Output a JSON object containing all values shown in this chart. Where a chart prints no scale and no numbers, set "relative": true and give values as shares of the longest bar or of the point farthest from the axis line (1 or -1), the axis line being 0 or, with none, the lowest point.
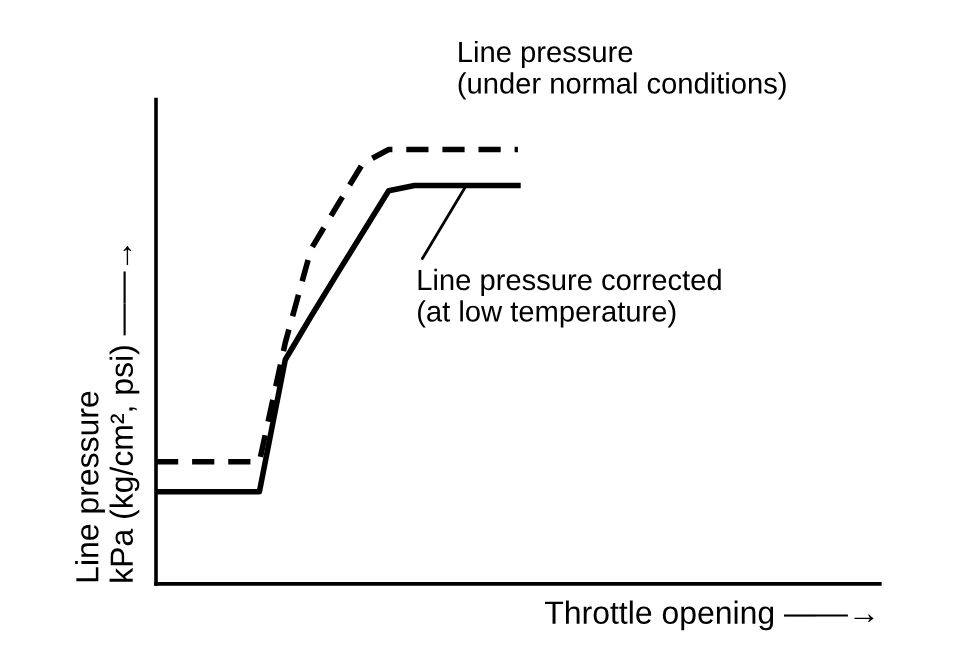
{
  "chart_data": {
    "type": "line",
    "relative": true,
    "xlabel": "Throttle opening ——→",
    "ylabel": "Line pressure\nkPa (kg/cm², psi) ——→",
    "tick_labels": false,
    "legend": false,
    "marker": "none",
    "categories": [
      null,
      null,
      null,
      null,
      null,
      null,
      null,
      null,
      null,
      null,
      null,
      null,
      null,
      null,
      null,
      null,
      null,
      null,
      null,
      null,
      null,
      null,
      null,
      null,
      null,
      null,
      null,
      null,
      null
    ],
    "series": [
      {
        "name": "Line pressure\n(under normal conditions)",
        "color": "#000000",
        "line_style": "dashed",
        "values": [
          0.281,
          0.281,
          0.281,
          0.281,
          0.281,
          0.555,
          0.771,
          0.87,
          0.968,
          1,
          1,
          1,
          1,
          1,
          1,
          null,
          null,
          null,
          null,
          null,
          null,
          null,
          null,
          null,
          null,
          null,
          null,
          null,
          null
        ]
      },
      {
        "name": "Line pressure corrected\n(at low temperature)",
        "color": "#000000",
        "line_style": "solid",
        "values": [
          0.212,
          0.212,
          0.212,
          0.212,
          0.212,
          0.516,
          0.616,
          0.713,
          0.809,
          0.905,
          0.917,
          0.917,
          0.917,
          0.917,
          0.917,
          null,
          null,
          null,
          null,
          null,
          null,
          null,
          null,
          null,
          null,
          null,
          null,
          null,
          null
        ]
      }
    ]
  }
}
